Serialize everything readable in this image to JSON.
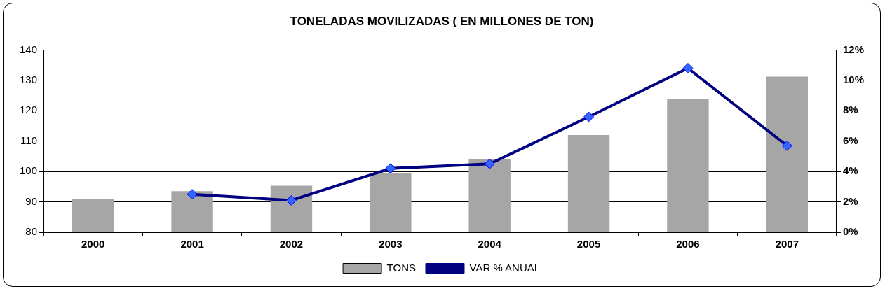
{
  "chart_data": {
    "type": "bar",
    "title": "TONELADAS MOVILIZADAS ( EN MILLONES DE TON)",
    "categories": [
      "2000",
      "2001",
      "2002",
      "2003",
      "2004",
      "2005",
      "2006",
      "2007"
    ],
    "series": [
      {
        "name": "TONS",
        "color": "#a6a6a6",
        "values": [
          91,
          93.5,
          95.3,
          99.5,
          104,
          112,
          124,
          131.2
        ]
      },
      {
        "name": "VAR % ANUAL",
        "type": "line",
        "axis": "y2",
        "color": "#000080",
        "marker": "diamond",
        "values": [
          null,
          2.5,
          2.1,
          4.2,
          4.5,
          7.6,
          10.8,
          5.7
        ]
      }
    ],
    "ylim": [
      80,
      140
    ],
    "yticks": [
      80,
      90,
      100,
      110,
      120,
      130,
      140
    ],
    "y2lim": [
      0,
      12
    ],
    "y2ticks": [
      {
        "value": 0,
        "label": "0%"
      },
      {
        "value": 2,
        "label": "2%"
      },
      {
        "value": 4,
        "label": "4%"
      },
      {
        "value": 6,
        "label": "6%"
      },
      {
        "value": 8,
        "label": "8%"
      },
      {
        "value": 10,
        "label": "10%"
      },
      {
        "value": 12,
        "label": "12%"
      }
    ],
    "grid": "y",
    "legend": "bottom"
  }
}
